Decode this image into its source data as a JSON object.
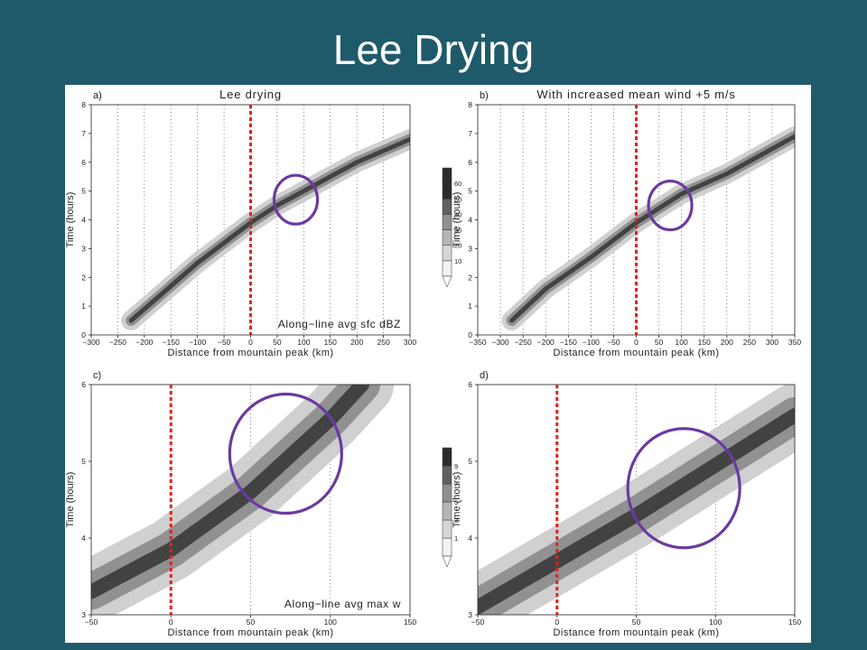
{
  "slide": {
    "title": "Lee Drying"
  },
  "colors": {
    "background": "#1f5a6a",
    "title": "#ffffff",
    "marker_line": "#e8201a",
    "circle": "#6b3aa0"
  },
  "chart_data": [
    {
      "panel": "a)",
      "type": "heatmap",
      "title": "Lee drying",
      "annotation": "Along−line avg sfc dBZ",
      "xlabel": "Distance from mountain peak (km)",
      "ylabel": "Time (hours)",
      "xlim": [
        -300,
        300
      ],
      "ylim": [
        0,
        8
      ],
      "xticks": [
        "−300",
        "−250",
        "−200",
        "−150",
        "−100",
        "−50",
        "0",
        "50",
        "100",
        "150",
        "200",
        "250",
        "300"
      ],
      "yticks": [
        "0",
        "1",
        "2",
        "3",
        "4",
        "5",
        "6",
        "7",
        "8"
      ],
      "grid": "dotted vertical",
      "colorbar": {
        "ticks": [
          "10",
          "20",
          "30",
          "40",
          "50",
          "60"
        ]
      },
      "marker_x": 0,
      "circle": {
        "x": 85,
        "y": 4.7
      },
      "band_center": [
        [
          -225,
          0.5
        ],
        [
          -150,
          1.7
        ],
        [
          -100,
          2.5
        ],
        [
          -50,
          3.2
        ],
        [
          0,
          3.9
        ],
        [
          50,
          4.5
        ],
        [
          100,
          5.0
        ],
        [
          150,
          5.5
        ],
        [
          200,
          6.0
        ],
        [
          300,
          6.8
        ]
      ]
    },
    {
      "panel": "b)",
      "type": "heatmap",
      "title": "With increased mean wind +5 m/s",
      "annotation": "",
      "xlabel": "Distance from mountain peak (km)",
      "ylabel": "Time (hours)",
      "xlim": [
        -350,
        350
      ],
      "ylim": [
        0,
        8
      ],
      "xticks": [
        "−350",
        "−300",
        "−250",
        "−200",
        "−150",
        "−100",
        "−50",
        "0",
        "50",
        "100",
        "150",
        "200",
        "250",
        "300",
        "350"
      ],
      "yticks": [
        "0",
        "1",
        "2",
        "3",
        "4",
        "5",
        "6",
        "7",
        "8"
      ],
      "grid": "dotted vertical",
      "marker_x": 0,
      "circle": {
        "x": 75,
        "y": 4.5
      },
      "band_center": [
        [
          -275,
          0.5
        ],
        [
          -200,
          1.6
        ],
        [
          -100,
          2.7
        ],
        [
          -50,
          3.3
        ],
        [
          0,
          3.9
        ],
        [
          50,
          4.4
        ],
        [
          100,
          4.9
        ],
        [
          200,
          5.6
        ],
        [
          350,
          6.9
        ]
      ]
    },
    {
      "panel": "c)",
      "type": "heatmap",
      "title": "",
      "annotation": "Along−line avg max w",
      "xlabel": "Distance from mountain peak (km)",
      "ylabel": "Time (hours)",
      "xlim": [
        -50,
        150
      ],
      "ylim": [
        3,
        6
      ],
      "xticks": [
        "−50",
        "0",
        "50",
        "100",
        "150"
      ],
      "yticks": [
        "3",
        "4",
        "5",
        "6"
      ],
      "grid": "dotted vertical",
      "colorbar": {
        "ticks": [
          "1",
          "3",
          "5",
          "7",
          "9"
        ]
      },
      "marker_x": 0,
      "circle": {
        "x": 72,
        "y": 5.1
      },
      "band_center": [
        [
          -50,
          3.3
        ],
        [
          0,
          3.85
        ],
        [
          50,
          4.6
        ],
        [
          100,
          5.55
        ],
        [
          120,
          6.0
        ]
      ]
    },
    {
      "panel": "d)",
      "type": "heatmap",
      "title": "",
      "annotation": "",
      "xlabel": "Distance from mountain peak (km)",
      "ylabel": "Time (hours)",
      "xlim": [
        -50,
        150
      ],
      "ylim": [
        3,
        6
      ],
      "xticks": [
        "−50",
        "0",
        "50",
        "100",
        "150"
      ],
      "yticks": [
        "3",
        "4",
        "5",
        "6"
      ],
      "grid": "dotted vertical",
      "marker_x": 0,
      "circle": {
        "x": 80,
        "y": 4.65
      },
      "band_center": [
        [
          -50,
          3.1
        ],
        [
          0,
          3.7
        ],
        [
          50,
          4.3
        ],
        [
          100,
          4.95
        ],
        [
          150,
          5.6
        ]
      ]
    }
  ]
}
